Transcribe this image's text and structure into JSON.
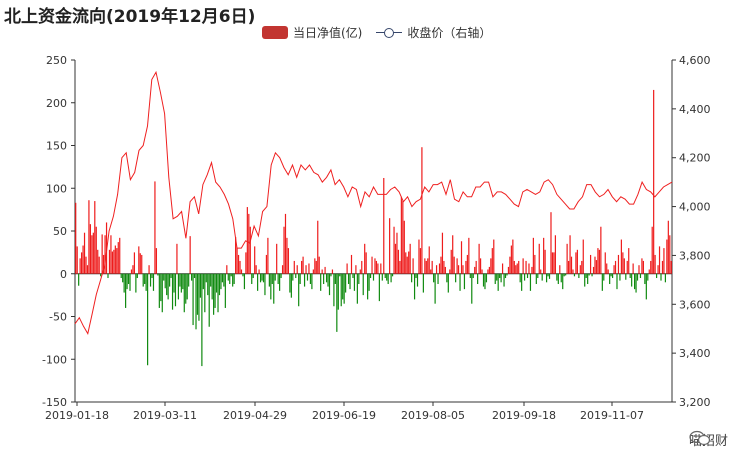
{
  "title": "北上资金流向(2019年12月6日)",
  "legend": {
    "bar_label": "当日净值(亿)",
    "line_label": "收盘价（右轴）"
  },
  "watermark": "喵招财",
  "colors": {
    "positive": "#ee1c1c",
    "negative": "#108a10",
    "line": "#ef2020",
    "axis": "#333333"
  },
  "chart_data": {
    "type": "bar",
    "title": "北上资金流向(2019年12月6日)",
    "x_tick_labels": [
      "2019-01-18",
      "2019-03-11",
      "2019-04-29",
      "2019-06-19",
      "2019-08-05",
      "2019-09-18",
      "2019-11-07"
    ],
    "y_left": {
      "ticks": [
        250,
        200,
        150,
        100,
        50,
        0,
        -50,
        -100,
        -150
      ],
      "ylim": [
        -150,
        250
      ]
    },
    "y_right": {
      "ticks": [
        "4,600",
        "4,400",
        "4,200",
        "4,000",
        "3,800",
        "3,600",
        "3,400",
        "3,200"
      ],
      "ylim": [
        3200,
        4600
      ]
    },
    "grid": false,
    "legend_position": "top-center",
    "series": [
      {
        "name": "当日净值(亿)",
        "type": "bar",
        "values": [
          83,
          32,
          -14,
          18,
          25,
          33,
          48,
          20,
          10,
          86,
          58,
          45,
          48,
          85,
          55,
          28,
          20,
          -3,
          46,
          22,
          45,
          60,
          -5,
          28,
          45,
          26,
          28,
          33,
          30,
          37,
          42,
          -5,
          -10,
          -22,
          -40,
          -18,
          -12,
          -20,
          5,
          10,
          25,
          -22,
          -5,
          32,
          24,
          22,
          -15,
          -12,
          -20,
          -107,
          10,
          -15,
          -5,
          -20,
          108,
          30,
          -2,
          -40,
          -32,
          -45,
          -8,
          -17,
          -25,
          -30,
          -15,
          -5,
          -42,
          -22,
          -38,
          35,
          -30,
          -15,
          -22,
          -18,
          -45,
          -35,
          -30,
          -15,
          44,
          -8,
          -60,
          -5,
          -65,
          -48,
          -55,
          -28,
          -108,
          -18,
          -45,
          -10,
          -25,
          -62,
          -15,
          -30,
          -48,
          -40,
          -22,
          -45,
          -25,
          -18,
          -10,
          -15,
          -40,
          10,
          -8,
          -12,
          -3,
          -15,
          -12,
          43,
          30,
          22,
          15,
          5,
          -3,
          -18,
          25,
          78,
          70,
          55,
          -12,
          -5,
          32,
          10,
          -20,
          5,
          -10,
          -8,
          -10,
          -25,
          22,
          42,
          -15,
          -30,
          -12,
          -35,
          -8,
          35,
          -12,
          -20,
          -5,
          10,
          55,
          70,
          42,
          30,
          -22,
          -28,
          -8,
          15,
          -5,
          10,
          -38,
          -12,
          15,
          20,
          -15,
          10,
          -8,
          12,
          -12,
          -18,
          5,
          18,
          15,
          62,
          20,
          -20,
          5,
          -12,
          8,
          -10,
          -15,
          -25,
          -3,
          5,
          -38,
          -12,
          -68,
          -42,
          -3,
          -38,
          -30,
          -35,
          -22,
          12,
          -12,
          -18,
          22,
          -5,
          -20,
          10,
          -35,
          -12,
          5,
          15,
          -25,
          35,
          25,
          -30,
          -20,
          -5,
          20,
          -8,
          18,
          15,
          12,
          -32,
          12,
          -8,
          112,
          -5,
          -8,
          -12,
          65,
          -10,
          -3,
          55,
          35,
          48,
          28,
          15,
          90,
          85,
          62,
          25,
          20,
          26,
          35,
          -10,
          18,
          -30,
          -5,
          -15,
          40,
          30,
          148,
          -22,
          18,
          15,
          18,
          32,
          5,
          15,
          -10,
          -35,
          10,
          -12,
          12,
          20,
          48,
          15,
          8,
          -10,
          -22,
          5,
          28,
          45,
          20,
          -10,
          18,
          10,
          -20,
          38,
          10,
          -18,
          15,
          22,
          42,
          -5,
          -35,
          -5,
          8,
          15,
          -12,
          35,
          18,
          5,
          -15,
          -18,
          -10,
          5,
          8,
          18,
          30,
          40,
          -12,
          -8,
          -20,
          -5,
          -10,
          12,
          -15,
          -5,
          -2,
          8,
          20,
          33,
          40,
          15,
          10,
          12,
          15,
          -10,
          -20,
          18,
          -8,
          15,
          -5,
          12,
          -20,
          8,
          42,
          22,
          -12,
          -5,
          35,
          5,
          -8,
          42,
          28,
          -10,
          -3,
          -6,
          72,
          25,
          25,
          45,
          -8,
          -12,
          10,
          -10,
          -18,
          -3,
          -2,
          35,
          15,
          45,
          20,
          5,
          -3,
          25,
          28,
          -5,
          10,
          15,
          40,
          -15,
          -5,
          -12,
          -2,
          22,
          -3,
          8,
          20,
          16,
          30,
          28,
          55,
          -20,
          -8,
          25,
          12,
          5,
          -12,
          -3,
          -5,
          10,
          15,
          -18,
          22,
          -8,
          40,
          25,
          18,
          -7,
          15,
          30,
          -5,
          -15,
          12,
          -18,
          -22,
          -8,
          10,
          -5,
          18,
          15,
          -12,
          -30,
          -8,
          5,
          15,
          55,
          215,
          22,
          -5,
          10,
          32,
          -8,
          15,
          30,
          -10,
          40,
          62,
          45,
          15
        ],
        "note_values_count": "approx. 230 trading days"
      },
      {
        "name": "收盘价（右轴）",
        "type": "line",
        "anchor_values": [
          [
            0,
            3520
          ],
          [
            3,
            3545
          ],
          [
            6,
            3510
          ],
          [
            9,
            3480
          ],
          [
            12,
            3560
          ],
          [
            15,
            3640
          ],
          [
            18,
            3700
          ],
          [
            21,
            3760
          ],
          [
            24,
            3900
          ],
          [
            27,
            3960
          ],
          [
            30,
            4050
          ],
          [
            33,
            4200
          ],
          [
            36,
            4220
          ],
          [
            39,
            4110
          ],
          [
            42,
            4140
          ],
          [
            45,
            4230
          ],
          [
            48,
            4250
          ],
          [
            51,
            4330
          ],
          [
            54,
            4520
          ],
          [
            57,
            4550
          ],
          [
            60,
            4470
          ],
          [
            63,
            4380
          ],
          [
            66,
            4120
          ],
          [
            69,
            3950
          ],
          [
            72,
            3960
          ],
          [
            75,
            3980
          ],
          [
            78,
            3870
          ],
          [
            81,
            4020
          ],
          [
            84,
            4040
          ],
          [
            87,
            3970
          ],
          [
            90,
            4090
          ],
          [
            93,
            4130
          ],
          [
            96,
            4180
          ],
          [
            99,
            4100
          ],
          [
            102,
            4080
          ],
          [
            105,
            4050
          ],
          [
            108,
            4010
          ],
          [
            111,
            3950
          ],
          [
            114,
            3830
          ],
          [
            117,
            3830
          ],
          [
            120,
            3860
          ],
          [
            123,
            3850
          ],
          [
            126,
            3920
          ],
          [
            129,
            3880
          ],
          [
            132,
            3980
          ],
          [
            135,
            4000
          ],
          [
            138,
            4170
          ],
          [
            141,
            4220
          ],
          [
            144,
            4200
          ],
          [
            147,
            4160
          ],
          [
            150,
            4130
          ],
          [
            153,
            4170
          ],
          [
            156,
            4120
          ],
          [
            159,
            4170
          ],
          [
            162,
            4150
          ],
          [
            165,
            4170
          ],
          [
            168,
            4140
          ],
          [
            171,
            4130
          ],
          [
            174,
            4100
          ],
          [
            177,
            4120
          ],
          [
            180,
            4150
          ],
          [
            183,
            4090
          ],
          [
            186,
            4110
          ],
          [
            189,
            4080
          ],
          [
            192,
            4040
          ],
          [
            195,
            4080
          ],
          [
            198,
            4070
          ],
          [
            201,
            4000
          ],
          [
            204,
            4060
          ],
          [
            207,
            4040
          ],
          [
            210,
            4080
          ],
          [
            213,
            4050
          ],
          [
            216,
            4050
          ],
          [
            219,
            4050
          ],
          [
            222,
            4070
          ],
          [
            225,
            4080
          ],
          [
            228,
            4060
          ],
          [
            231,
            4020
          ],
          [
            234,
            4040
          ],
          [
            237,
            4000
          ],
          [
            240,
            4020
          ],
          [
            243,
            4030
          ],
          [
            246,
            4080
          ],
          [
            249,
            4060
          ],
          [
            252,
            4090
          ],
          [
            255,
            4090
          ],
          [
            258,
            4100
          ],
          [
            261,
            4050
          ],
          [
            264,
            4110
          ],
          [
            267,
            4030
          ],
          [
            270,
            4020
          ],
          [
            273,
            4060
          ],
          [
            276,
            4040
          ],
          [
            279,
            4040
          ],
          [
            282,
            4080
          ],
          [
            285,
            4080
          ],
          [
            288,
            4100
          ],
          [
            291,
            4100
          ],
          [
            294,
            4040
          ],
          [
            297,
            4060
          ],
          [
            300,
            4060
          ],
          [
            303,
            4050
          ],
          [
            306,
            4030
          ],
          [
            309,
            4010
          ],
          [
            312,
            4000
          ],
          [
            315,
            4060
          ],
          [
            318,
            4070
          ],
          [
            321,
            4060
          ],
          [
            324,
            4050
          ],
          [
            327,
            4060
          ],
          [
            330,
            4100
          ],
          [
            333,
            4110
          ],
          [
            336,
            4090
          ],
          [
            339,
            4050
          ],
          [
            342,
            4030
          ],
          [
            345,
            4010
          ],
          [
            348,
            3990
          ],
          [
            351,
            3990
          ],
          [
            354,
            4020
          ],
          [
            357,
            4040
          ],
          [
            360,
            4090
          ],
          [
            363,
            4090
          ],
          [
            366,
            4060
          ],
          [
            369,
            4040
          ],
          [
            372,
            4050
          ],
          [
            375,
            4070
          ],
          [
            378,
            4040
          ],
          [
            381,
            4020
          ],
          [
            384,
            4040
          ],
          [
            387,
            4030
          ],
          [
            390,
            4010
          ],
          [
            393,
            4010
          ],
          [
            396,
            4050
          ],
          [
            399,
            4100
          ],
          [
            402,
            4070
          ],
          [
            405,
            4060
          ],
          [
            408,
            4040
          ],
          [
            411,
            4060
          ],
          [
            414,
            4080
          ],
          [
            417,
            4090
          ],
          [
            420,
            4100
          ]
        ]
      }
    ]
  }
}
